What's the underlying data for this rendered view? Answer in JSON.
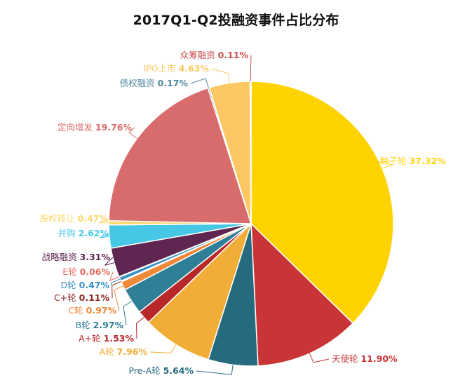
{
  "chart_data": {
    "type": "pie",
    "title": "2017Q1-Q2投融资事件占比分布",
    "unit": "%",
    "slices": [
      {
        "label": "种子轮",
        "value": 37.32,
        "value_text": "37.32%",
        "color": "#FFD300"
      },
      {
        "label": "天使轮",
        "value": 11.9,
        "value_text": "11.90%",
        "color": "#C93536"
      },
      {
        "label": "Pre-A轮",
        "value": 5.64,
        "value_text": "5.64%",
        "color": "#256B7D"
      },
      {
        "label": "A轮",
        "value": 7.96,
        "value_text": "7.96%",
        "color": "#F0AE38"
      },
      {
        "label": "A+轮",
        "value": 1.53,
        "value_text": "1.53%",
        "color": "#B8282B"
      },
      {
        "label": "B轮",
        "value": 2.97,
        "value_text": "2.97%",
        "color": "#2F7F96"
      },
      {
        "label": "C轮",
        "value": 0.97,
        "value_text": "0.97%",
        "color": "#F0883A"
      },
      {
        "label": "C+轮",
        "value": 0.11,
        "value_text": "0.11%",
        "color": "#8E2424"
      },
      {
        "label": "D轮",
        "value": 0.47,
        "value_text": "0.47%",
        "color": "#3A92C4"
      },
      {
        "label": "E轮",
        "value": 0.06,
        "value_text": "0.06%",
        "color": "#E96A5E"
      },
      {
        "label": "战略融资",
        "value": 3.31,
        "value_text": "3.31%",
        "color": "#5E2650"
      },
      {
        "label": "并购",
        "value": 2.62,
        "value_text": "2.62%",
        "color": "#46C7E6"
      },
      {
        "label": "股权转让",
        "value": 0.47,
        "value_text": "0.47%",
        "color": "#FCD86A"
      },
      {
        "label": "定向增发",
        "value": 19.76,
        "value_text": "19.76%",
        "color": "#D86B6B"
      },
      {
        "label": "债权融资",
        "value": 0.17,
        "value_text": "0.17%",
        "color": "#4E8A9C"
      },
      {
        "label": "IPO上市",
        "value": 4.63,
        "value_text": "4.63%",
        "color": "#FDC863"
      },
      {
        "label": "众筹融资",
        "value": 0.11,
        "value_text": "0.11%",
        "color": "#C94F4F"
      }
    ],
    "legend": "none",
    "data_labels": "outside with leader lines"
  }
}
